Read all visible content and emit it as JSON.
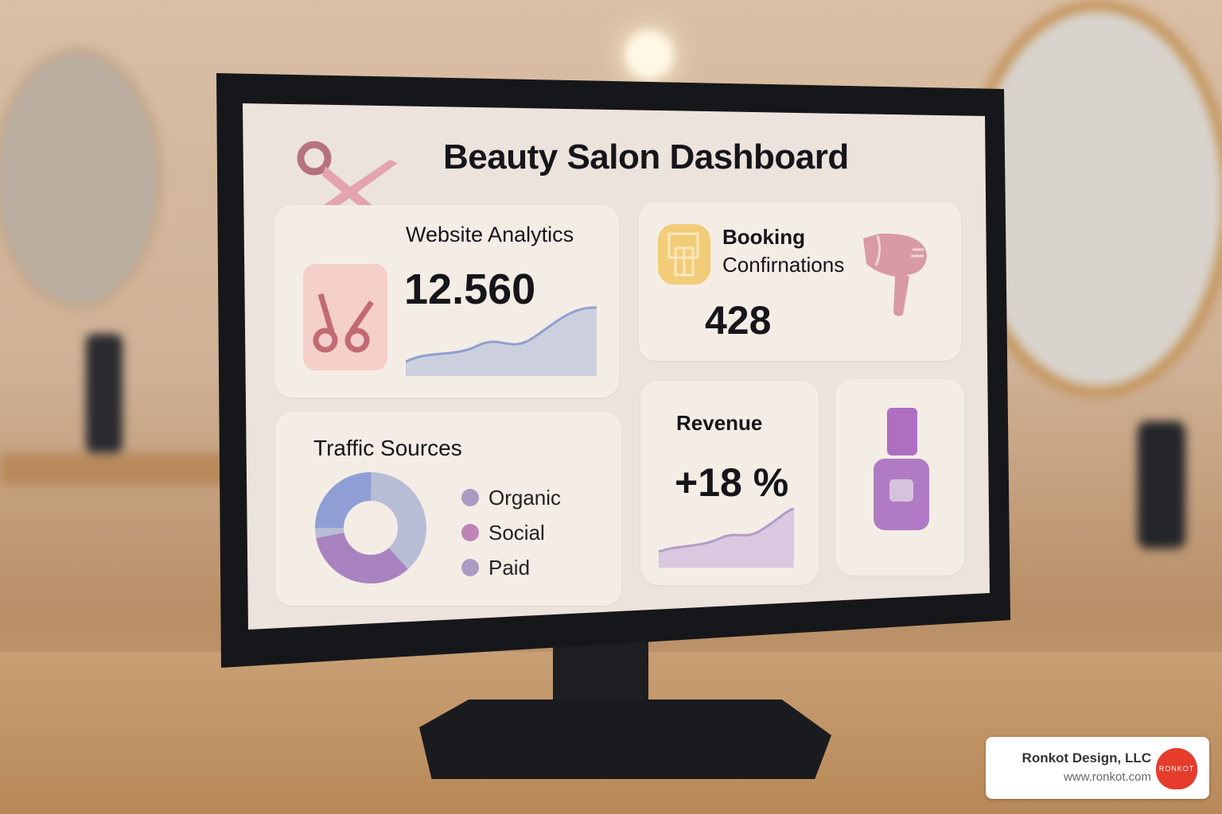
{
  "dashboard": {
    "title": "Beauty Salon Dashboard",
    "website_analytics": {
      "label": "Website Analytics",
      "value": "12.560",
      "icon": "scissors-icon"
    },
    "booking": {
      "label_line1": "Booking",
      "label_line2": "Confirnations",
      "value": "428",
      "icon": "booking-icon",
      "decor_icon": "hair-dryer-icon"
    },
    "traffic": {
      "label": "Traffic Sources",
      "legend": [
        {
          "label": "Organic",
          "color": "#a99cc2"
        },
        {
          "label": "Social",
          "color": "#c083b8"
        },
        {
          "label": "Paid",
          "color": "#a99cc2"
        }
      ],
      "donut_colors": [
        "#8f9fd6",
        "#b8bdd6",
        "#a983c0"
      ]
    },
    "revenue": {
      "label": "Revenue",
      "value": "+18 %"
    },
    "nail_polish": {
      "icon": "nail-polish-icon"
    }
  },
  "watermark": {
    "company": "Ronkot Design, LLC",
    "url": "www.ronkot.com",
    "logo_text": "RONKOT",
    "logo_color": "#e53c2c"
  }
}
